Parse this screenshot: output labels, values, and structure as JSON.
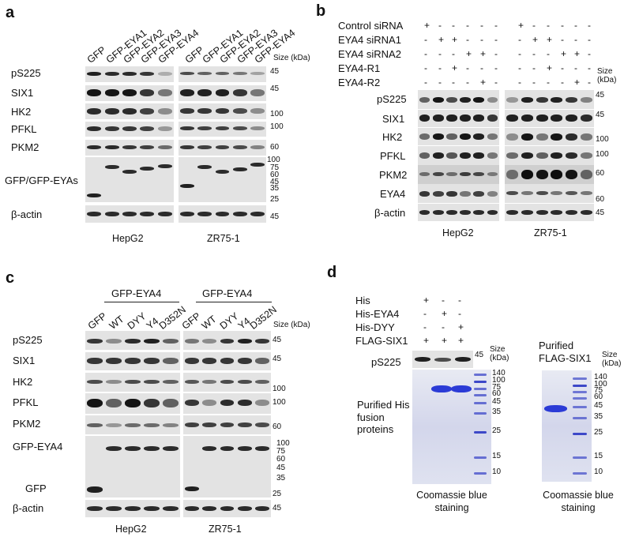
{
  "panel_labels": [
    "a",
    "b",
    "c",
    "d"
  ],
  "size_unit": "Size (kDa)",
  "panel_a": {
    "lanes": [
      "GFP",
      "GFP-EYA1",
      "GFP-EYA2",
      "GFP-EYA3",
      "GFP-EYA4"
    ],
    "rows": [
      {
        "label": "pS225",
        "marker": [
          "45"
        ]
      },
      {
        "label": "SIX1",
        "marker": [
          "45"
        ]
      },
      {
        "label": "HK2",
        "marker": [
          "100"
        ]
      },
      {
        "label": "PFKL",
        "marker": [
          "100"
        ]
      },
      {
        "label": "PKM2",
        "marker": [
          "60"
        ]
      },
      {
        "label": "GFP/GFP-EYAs",
        "marker": [
          "100",
          "75",
          "60",
          "45",
          "35",
          "25"
        ]
      },
      {
        "label": "β-actin",
        "marker": [
          "45"
        ]
      }
    ],
    "cell_lines": [
      "HepG2",
      "ZR75-1"
    ]
  },
  "panel_b": {
    "conditions": [
      {
        "label": "Control siRNA",
        "hep": [
          "+",
          "-",
          "-",
          "-",
          "-",
          "-"
        ],
        "zr": [
          "+",
          "-",
          "-",
          "-",
          "-",
          "-"
        ]
      },
      {
        "label": "EYA4 siRNA1",
        "hep": [
          "-",
          "+",
          "+",
          "-",
          "-",
          "-"
        ],
        "zr": [
          "-",
          "+",
          "+",
          "-",
          "-",
          "-"
        ]
      },
      {
        "label": "EYA4 siRNA2",
        "hep": [
          "-",
          "-",
          "-",
          "+",
          "+",
          "-"
        ],
        "zr": [
          "-",
          "-",
          "-",
          "+",
          "+",
          "-"
        ]
      },
      {
        "label": "EYA4-R1",
        "hep": [
          "-",
          "-",
          "+",
          "-",
          "-",
          "-"
        ],
        "zr": [
          "-",
          "-",
          "+",
          "-",
          "-",
          "-"
        ]
      },
      {
        "label": "EYA4-R2",
        "hep": [
          "-",
          "-",
          "-",
          "-",
          "+",
          "-"
        ],
        "zr": [
          "-",
          "-",
          "-",
          "-",
          "+",
          "-"
        ]
      }
    ],
    "rows": [
      {
        "label": "pS225",
        "marker": [
          "45"
        ]
      },
      {
        "label": "SIX1",
        "marker": [
          "45"
        ]
      },
      {
        "label": "HK2",
        "marker": [
          "100"
        ]
      },
      {
        "label": "PFKL",
        "marker": [
          "100"
        ]
      },
      {
        "label": "PKM2",
        "marker": [
          "60"
        ]
      },
      {
        "label": "EYA4",
        "marker": [
          "60"
        ]
      },
      {
        "label": "β-actin",
        "marker": [
          "45"
        ]
      }
    ],
    "cell_lines": [
      "HepG2",
      "ZR75-1"
    ]
  },
  "panel_c": {
    "group_label": "GFP-EYA4",
    "lanes": [
      "GFP",
      "WT",
      "DYY",
      "Y4",
      "D352N"
    ],
    "rows": [
      {
        "label": "pS225",
        "marker": [
          "45"
        ]
      },
      {
        "label": "SIX1",
        "marker": [
          "45"
        ]
      },
      {
        "label": "HK2",
        "marker": [
          "100"
        ]
      },
      {
        "label": "PFKL",
        "marker": [
          "100"
        ]
      },
      {
        "label": "PKM2",
        "marker": [
          "60"
        ]
      },
      {
        "label": "GFP-EYA4",
        "marker": [
          "100",
          "75",
          "60",
          "45",
          "35",
          "25"
        ]
      },
      {
        "label": "β-actin",
        "marker": [
          "45"
        ]
      }
    ],
    "gfp_label": "GFP",
    "cell_lines": [
      "HepG2",
      "ZR75-1"
    ]
  },
  "panel_d": {
    "conditions": [
      {
        "label": "His",
        "values": [
          "+",
          "-",
          "-"
        ]
      },
      {
        "label": "His-EYA4",
        "values": [
          "-",
          "+",
          "-"
        ]
      },
      {
        "label": "His-DYY",
        "values": [
          "-",
          "-",
          "+"
        ]
      },
      {
        "label": "FLAG-SIX1",
        "values": [
          "+",
          "+",
          "+"
        ]
      }
    ],
    "blot_label": "pS225",
    "blot_marker": "45",
    "gel_label": "Purified His fusion proteins",
    "gel_markers": [
      "140",
      "100",
      "75",
      "60",
      "45",
      "35",
      "25",
      "15",
      "10"
    ],
    "caption_left": "Coomassie blue staining",
    "right_title": "Purified FLAG-SIX1",
    "right_markers": [
      "140",
      "100",
      "75",
      "60",
      "45",
      "35",
      "25",
      "15",
      "10"
    ],
    "caption_right": "Coomassie blue staining"
  }
}
